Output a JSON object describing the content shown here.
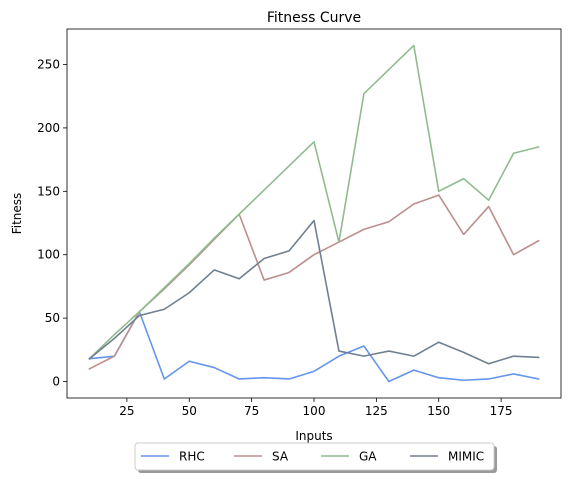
{
  "chart_data": {
    "type": "line",
    "title": "Fitness Curve",
    "xlabel": "Inputs",
    "ylabel": "Fitness",
    "xlim": [
      1,
      199
    ],
    "ylim": [
      -13,
      278
    ],
    "xticks": [
      25,
      50,
      75,
      100,
      125,
      150,
      175
    ],
    "yticks": [
      0,
      50,
      100,
      150,
      200,
      250
    ],
    "grid": false,
    "legend_position": "bottom-center, below axes",
    "x": [
      10,
      20,
      30,
      40,
      50,
      60,
      70,
      80,
      90,
      100,
      110,
      120,
      130,
      140,
      150,
      160,
      170,
      180,
      190
    ],
    "series": [
      {
        "name": "RHC",
        "color": "#6495ED",
        "values": [
          18,
          20,
          55,
          2,
          16,
          11,
          2,
          3,
          2,
          8,
          20,
          28,
          0,
          9,
          3,
          1,
          2,
          6,
          2
        ]
      },
      {
        "name": "SA",
        "color": "#BC8F8F",
        "values": [
          10,
          20,
          55,
          73,
          92,
          112,
          132,
          80,
          86,
          100,
          110,
          120,
          126,
          140,
          147,
          116,
          138,
          100,
          111
        ]
      },
      {
        "name": "GA",
        "color": "#8FBC8F",
        "values": [
          18,
          37,
          55,
          74,
          93,
          113,
          132,
          151,
          170,
          189,
          110,
          227,
          246,
          265,
          150,
          160,
          143,
          180,
          185
        ]
      },
      {
        "name": "MIMIC",
        "color": "#708090",
        "values": [
          18,
          34,
          52,
          57,
          70,
          88,
          81,
          97,
          103,
          127,
          24,
          20,
          24,
          20,
          31,
          23,
          14,
          20,
          19
        ]
      }
    ]
  }
}
